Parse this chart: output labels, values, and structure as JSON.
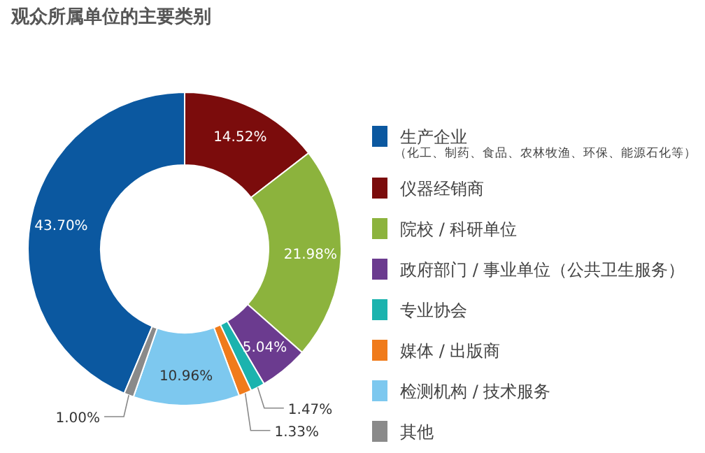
{
  "chart_data": {
    "type": "donut",
    "title": "观众所属单位的主要类别",
    "categories": [
      "生产企业",
      "仪器经销商",
      "院校 / 科研单位",
      "政府部门 / 事业单位（公共卫生服务）",
      "专业协会",
      "媒体 / 出版商",
      "检测机构 / 技术服务",
      "其他"
    ],
    "values": [
      43.7,
      14.52,
      21.98,
      5.04,
      1.47,
      1.33,
      10.96,
      1.0
    ],
    "value_labels": [
      "43.70%",
      "14.52%",
      "21.98%",
      "5.04%",
      "1.47%",
      "1.33%",
      "10.96%",
      "1.00%"
    ],
    "colors": [
      "#0b58a0",
      "#7b0c0c",
      "#8cb33d",
      "#6b3b8f",
      "#1bb3ae",
      "#f07b1b",
      "#7dc8ef",
      "#8a8a8a"
    ],
    "annotations": [
      "（化工、制药、食品、农林牧渔、环保、能源石化等）"
    ],
    "legend": "right"
  }
}
